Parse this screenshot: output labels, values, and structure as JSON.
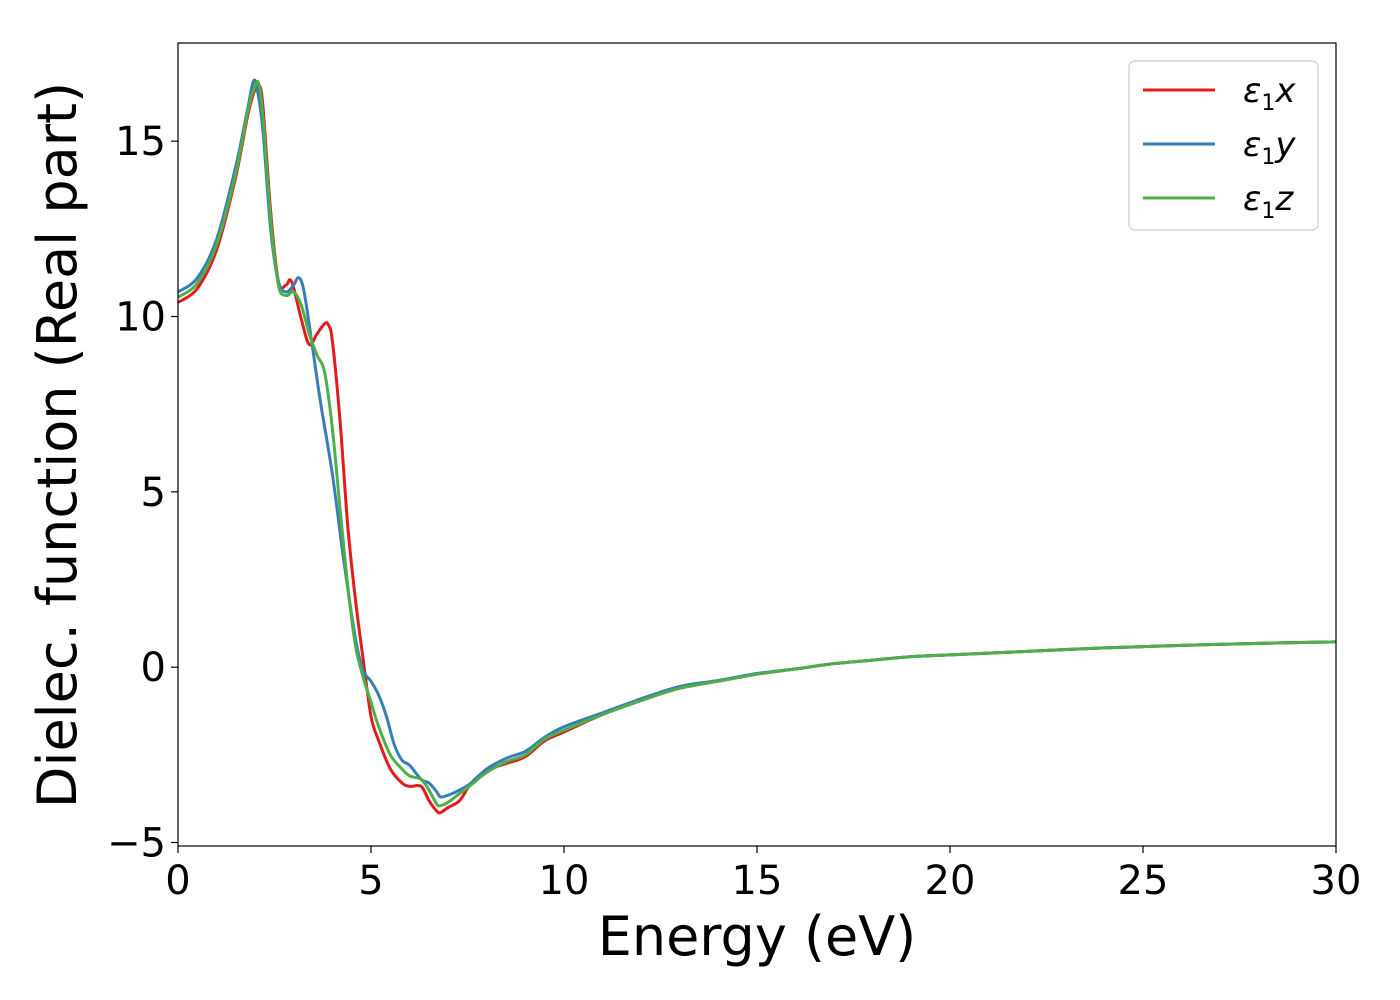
{
  "chart_data": {
    "type": "line",
    "xlabel": "Energy (eV)",
    "ylabel": "Dielec. function (Real part)",
    "xlim": [
      0,
      30
    ],
    "ylim": [
      -5.1,
      17.8
    ],
    "xticks": [
      0,
      5,
      10,
      15,
      20,
      25,
      30
    ],
    "yticks": [
      -5,
      0,
      5,
      10,
      15
    ],
    "xtick_labels": [
      "0",
      "5",
      "10",
      "15",
      "20",
      "25",
      "30"
    ],
    "ytick_labels": [
      "−5",
      "0",
      "5",
      "10",
      "15"
    ],
    "grid": false,
    "legend_position": "top-right",
    "series": [
      {
        "name": "ε1x",
        "legend_symbol": "ε",
        "legend_sub": "1",
        "legend_suffix": "x",
        "color": "#e41a1c",
        "x": [
          0,
          0.5,
          1.0,
          1.5,
          1.8,
          2.0,
          2.1,
          2.2,
          2.4,
          2.6,
          2.8,
          2.9,
          3.0,
          3.2,
          3.4,
          3.6,
          3.8,
          3.9,
          4.0,
          4.2,
          4.4,
          4.6,
          4.8,
          5.0,
          5.2,
          5.5,
          5.8,
          6.0,
          6.3,
          6.5,
          6.7,
          6.8,
          7.0,
          7.3,
          7.6,
          8.0,
          8.5,
          9.0,
          9.5,
          10,
          11,
          12,
          13,
          14,
          15,
          16,
          17,
          18,
          19,
          20,
          22,
          24,
          26,
          28,
          30
        ],
        "y": [
          10.4,
          10.8,
          11.9,
          14.0,
          15.7,
          16.5,
          16.6,
          16.0,
          13.0,
          11.0,
          10.9,
          11.05,
          10.8,
          9.9,
          9.2,
          9.5,
          9.8,
          9.75,
          9.3,
          7.0,
          4.0,
          1.9,
          0.2,
          -1.4,
          -2.1,
          -2.9,
          -3.3,
          -3.4,
          -3.4,
          -3.8,
          -4.1,
          -4.15,
          -4.0,
          -3.8,
          -3.3,
          -2.95,
          -2.75,
          -2.55,
          -2.1,
          -1.85,
          -1.35,
          -0.95,
          -0.6,
          -0.4,
          -0.2,
          -0.05,
          0.1,
          0.2,
          0.3,
          0.35,
          0.45,
          0.55,
          0.62,
          0.68,
          0.72
        ]
      },
      {
        "name": "ε1y",
        "legend_symbol": "ε",
        "legend_sub": "1",
        "legend_suffix": "y",
        "color": "#377eb8",
        "x": [
          0,
          0.5,
          1.0,
          1.5,
          1.8,
          1.95,
          2.05,
          2.2,
          2.4,
          2.6,
          2.8,
          3.0,
          3.1,
          3.2,
          3.3,
          3.5,
          3.7,
          4.0,
          4.3,
          4.6,
          4.8,
          5.0,
          5.2,
          5.4,
          5.6,
          5.8,
          6.0,
          6.3,
          6.5,
          6.7,
          6.8,
          7.0,
          7.3,
          7.6,
          8.0,
          8.5,
          9.0,
          9.5,
          10,
          11,
          12,
          13,
          14,
          15,
          16,
          17,
          18,
          19,
          20,
          22,
          24,
          26,
          28,
          30
        ],
        "y": [
          10.7,
          11.1,
          12.2,
          14.3,
          15.9,
          16.7,
          16.5,
          15.3,
          12.5,
          11.0,
          10.7,
          10.9,
          11.1,
          11.0,
          10.5,
          9.0,
          7.5,
          5.5,
          3.0,
          0.8,
          -0.1,
          -0.4,
          -0.8,
          -1.4,
          -2.2,
          -2.65,
          -2.8,
          -3.2,
          -3.3,
          -3.55,
          -3.7,
          -3.65,
          -3.5,
          -3.3,
          -2.9,
          -2.6,
          -2.4,
          -2.0,
          -1.7,
          -1.3,
          -0.9,
          -0.55,
          -0.38,
          -0.18,
          -0.05,
          0.1,
          0.2,
          0.3,
          0.35,
          0.45,
          0.55,
          0.62,
          0.68,
          0.72
        ]
      },
      {
        "name": "ε1z",
        "legend_symbol": "ε",
        "legend_sub": "1",
        "legend_suffix": "z",
        "color": "#4daf4a",
        "x": [
          0,
          0.5,
          1.0,
          1.5,
          1.8,
          2.0,
          2.1,
          2.2,
          2.4,
          2.6,
          2.8,
          3.0,
          3.2,
          3.4,
          3.6,
          3.8,
          4.0,
          4.2,
          4.4,
          4.6,
          4.8,
          5.0,
          5.2,
          5.5,
          5.8,
          6.0,
          6.3,
          6.5,
          6.7,
          6.8,
          7.0,
          7.3,
          7.6,
          8.0,
          8.5,
          9.0,
          9.5,
          10,
          11,
          12,
          13,
          14,
          15,
          16,
          17,
          18,
          19,
          20,
          22,
          24,
          26,
          28,
          30
        ],
        "y": [
          10.55,
          10.95,
          12.05,
          14.1,
          15.8,
          16.6,
          16.6,
          15.7,
          12.8,
          10.9,
          10.6,
          10.7,
          10.3,
          9.5,
          8.9,
          8.4,
          6.8,
          4.5,
          2.3,
          0.6,
          -0.3,
          -1.0,
          -1.7,
          -2.5,
          -2.9,
          -3.1,
          -3.2,
          -3.5,
          -3.9,
          -3.95,
          -3.85,
          -3.6,
          -3.35,
          -3.0,
          -2.7,
          -2.5,
          -2.05,
          -1.8,
          -1.35,
          -0.95,
          -0.6,
          -0.4,
          -0.2,
          -0.05,
          0.1,
          0.2,
          0.3,
          0.35,
          0.45,
          0.55,
          0.62,
          0.68,
          0.72
        ]
      }
    ]
  }
}
